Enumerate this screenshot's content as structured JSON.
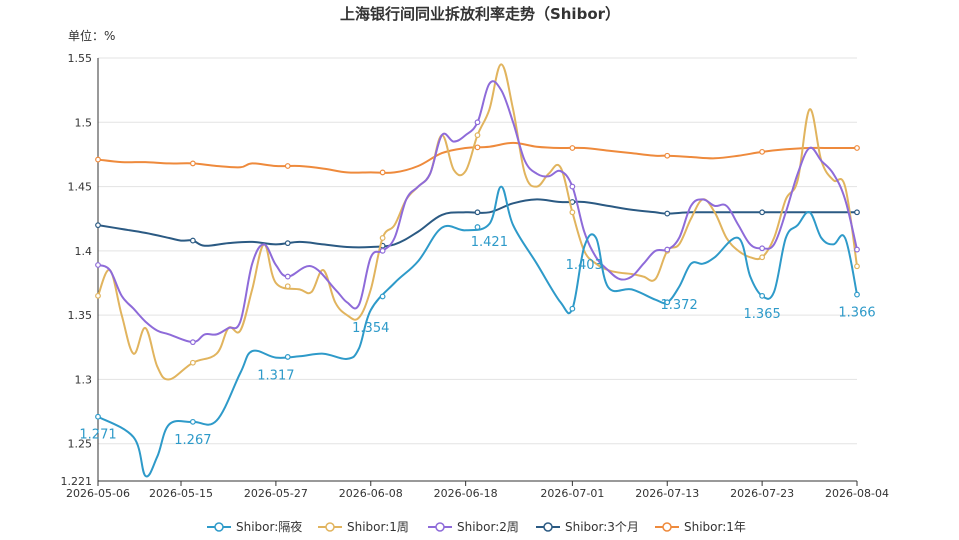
{
  "chart_data": {
    "type": "line",
    "title": "上海银行间同业拆放利率走势（Shibor）",
    "unit_label": "单位：%",
    "ylim": [
      1.221,
      1.55
    ],
    "y_ticks": [
      "1.221",
      "1.25",
      "1.3",
      "1.35",
      "1.4",
      "1.45",
      "1.5",
      "1.55"
    ],
    "y_tick_values": [
      1.221,
      1.25,
      1.3,
      1.35,
      1.4,
      1.45,
      1.5,
      1.55
    ],
    "x_tick_labels": [
      "2026-05-06",
      "2026-05-15",
      "2026-05-27",
      "2026-06-08",
      "2026-06-18",
      "2026-07-01",
      "2026-07-13",
      "2026-07-23",
      "2026-08-04"
    ],
    "x_tick_index": [
      0,
      7,
      15,
      23,
      31,
      40,
      48,
      56,
      64
    ],
    "grid": true,
    "legend_position": "bottom",
    "series": [
      {
        "name": "Shibor:隔夜",
        "color": "#2e9ac9",
        "points": [
          [
            0,
            1.271
          ],
          [
            3,
            1.255
          ],
          [
            4,
            1.225
          ],
          [
            5,
            1.24
          ],
          [
            6,
            1.265
          ],
          [
            8,
            1.267
          ],
          [
            10,
            1.268
          ],
          [
            12,
            1.305
          ],
          [
            13,
            1.322
          ],
          [
            15,
            1.317
          ],
          [
            17,
            1.318
          ],
          [
            19,
            1.32
          ],
          [
            21,
            1.316
          ],
          [
            22,
            1.324
          ],
          [
            23,
            1.354
          ],
          [
            25,
            1.375
          ],
          [
            27,
            1.392
          ],
          [
            29,
            1.418
          ],
          [
            31,
            1.416
          ],
          [
            33,
            1.421
          ],
          [
            34,
            1.45
          ],
          [
            35,
            1.42
          ],
          [
            37,
            1.39
          ],
          [
            39,
            1.36
          ],
          [
            40,
            1.355
          ],
          [
            41,
            1.403
          ],
          [
            42,
            1.41
          ],
          [
            43,
            1.372
          ],
          [
            45,
            1.37
          ],
          [
            47,
            1.362
          ],
          [
            48,
            1.36
          ],
          [
            49,
            1.372
          ],
          [
            50,
            1.39
          ],
          [
            51,
            1.39
          ],
          [
            52,
            1.395
          ],
          [
            54,
            1.41
          ],
          [
            55,
            1.38
          ],
          [
            56,
            1.365
          ],
          [
            57,
            1.368
          ],
          [
            58,
            1.41
          ],
          [
            59,
            1.42
          ],
          [
            60,
            1.43
          ],
          [
            61,
            1.41
          ],
          [
            62,
            1.405
          ],
          [
            63,
            1.41
          ],
          [
            64,
            1.366
          ]
        ]
      },
      {
        "name": "Shibor:1周",
        "color": "#e1b45e",
        "points": [
          [
            0,
            1.365
          ],
          [
            1,
            1.385
          ],
          [
            2,
            1.35
          ],
          [
            3,
            1.32
          ],
          [
            4,
            1.34
          ],
          [
            5,
            1.31
          ],
          [
            6,
            1.3
          ],
          [
            8,
            1.313
          ],
          [
            10,
            1.32
          ],
          [
            11,
            1.34
          ],
          [
            12,
            1.338
          ],
          [
            13,
            1.37
          ],
          [
            14,
            1.405
          ],
          [
            15,
            1.375
          ],
          [
            17,
            1.37
          ],
          [
            18,
            1.368
          ],
          [
            19,
            1.385
          ],
          [
            20,
            1.36
          ],
          [
            21,
            1.35
          ],
          [
            22,
            1.348
          ],
          [
            23,
            1.37
          ],
          [
            24,
            1.41
          ],
          [
            25,
            1.42
          ],
          [
            26,
            1.44
          ],
          [
            27,
            1.45
          ],
          [
            28,
            1.46
          ],
          [
            29,
            1.49
          ],
          [
            30,
            1.463
          ],
          [
            31,
            1.462
          ],
          [
            32,
            1.49
          ],
          [
            33,
            1.51
          ],
          [
            34,
            1.545
          ],
          [
            35,
            1.51
          ],
          [
            36,
            1.46
          ],
          [
            37,
            1.45
          ],
          [
            38,
            1.46
          ],
          [
            39,
            1.465
          ],
          [
            40,
            1.43
          ],
          [
            41,
            1.4
          ],
          [
            42,
            1.39
          ],
          [
            43,
            1.385
          ],
          [
            44,
            1.383
          ],
          [
            45,
            1.382
          ],
          [
            46,
            1.38
          ],
          [
            47,
            1.378
          ],
          [
            48,
            1.4
          ],
          [
            49,
            1.405
          ],
          [
            50,
            1.425
          ],
          [
            51,
            1.44
          ],
          [
            52,
            1.43
          ],
          [
            53,
            1.41
          ],
          [
            54,
            1.4
          ],
          [
            55,
            1.395
          ],
          [
            56,
            1.395
          ],
          [
            57,
            1.41
          ],
          [
            58,
            1.44
          ],
          [
            59,
            1.455
          ],
          [
            60,
            1.51
          ],
          [
            61,
            1.47
          ],
          [
            62,
            1.455
          ],
          [
            63,
            1.45
          ],
          [
            64,
            1.388
          ]
        ]
      },
      {
        "name": "Shibor:2周",
        "color": "#8e6bd9",
        "points": [
          [
            0,
            1.389
          ],
          [
            1,
            1.385
          ],
          [
            2,
            1.365
          ],
          [
            3,
            1.355
          ],
          [
            4,
            1.345
          ],
          [
            5,
            1.338
          ],
          [
            6,
            1.335
          ],
          [
            8,
            1.329
          ],
          [
            9,
            1.335
          ],
          [
            10,
            1.335
          ],
          [
            11,
            1.34
          ],
          [
            12,
            1.345
          ],
          [
            13,
            1.39
          ],
          [
            14,
            1.405
          ],
          [
            15,
            1.389
          ],
          [
            16,
            1.38
          ],
          [
            18,
            1.388
          ],
          [
            20,
            1.37
          ],
          [
            21,
            1.36
          ],
          [
            22,
            1.358
          ],
          [
            23,
            1.395
          ],
          [
            24,
            1.4
          ],
          [
            25,
            1.41
          ],
          [
            26,
            1.44
          ],
          [
            27,
            1.45
          ],
          [
            28,
            1.46
          ],
          [
            29,
            1.49
          ],
          [
            30,
            1.485
          ],
          [
            31,
            1.49
          ],
          [
            32,
            1.5
          ],
          [
            33,
            1.53
          ],
          [
            34,
            1.525
          ],
          [
            35,
            1.5
          ],
          [
            36,
            1.47
          ],
          [
            37,
            1.46
          ],
          [
            38,
            1.458
          ],
          [
            39,
            1.462
          ],
          [
            40,
            1.45
          ],
          [
            41,
            1.415
          ],
          [
            42,
            1.395
          ],
          [
            43,
            1.385
          ],
          [
            44,
            1.378
          ],
          [
            45,
            1.38
          ],
          [
            46,
            1.39
          ],
          [
            47,
            1.4
          ],
          [
            48,
            1.401
          ],
          [
            49,
            1.41
          ],
          [
            50,
            1.435
          ],
          [
            51,
            1.44
          ],
          [
            52,
            1.435
          ],
          [
            53,
            1.435
          ],
          [
            54,
            1.42
          ],
          [
            55,
            1.405
          ],
          [
            56,
            1.402
          ],
          [
            57,
            1.405
          ],
          [
            58,
            1.43
          ],
          [
            59,
            1.46
          ],
          [
            60,
            1.48
          ],
          [
            61,
            1.47
          ],
          [
            62,
            1.46
          ],
          [
            63,
            1.44
          ],
          [
            64,
            1.401
          ]
        ]
      },
      {
        "name": "Shibor:3个月",
        "color": "#2b5a83",
        "points": [
          [
            0,
            1.42
          ],
          [
            2,
            1.417
          ],
          [
            4,
            1.414
          ],
          [
            6,
            1.41
          ],
          [
            7,
            1.408
          ],
          [
            8,
            1.408
          ],
          [
            9,
            1.404
          ],
          [
            11,
            1.406
          ],
          [
            13,
            1.407
          ],
          [
            15,
            1.405
          ],
          [
            17,
            1.407
          ],
          [
            19,
            1.405
          ],
          [
            21,
            1.403
          ],
          [
            23,
            1.403
          ],
          [
            25,
            1.405
          ],
          [
            27,
            1.415
          ],
          [
            29,
            1.428
          ],
          [
            31,
            1.43
          ],
          [
            33,
            1.43
          ],
          [
            35,
            1.437
          ],
          [
            37,
            1.44
          ],
          [
            39,
            1.438
          ],
          [
            41,
            1.438
          ],
          [
            43,
            1.435
          ],
          [
            45,
            1.432
          ],
          [
            47,
            1.43
          ],
          [
            48,
            1.429
          ],
          [
            50,
            1.43
          ],
          [
            52,
            1.43
          ],
          [
            54,
            1.43
          ],
          [
            56,
            1.43
          ],
          [
            58,
            1.43
          ],
          [
            60,
            1.43
          ],
          [
            62,
            1.43
          ],
          [
            64,
            1.43
          ]
        ]
      },
      {
        "name": "Shibor:1年",
        "color": "#ee8a3c",
        "points": [
          [
            0,
            1.471
          ],
          [
            2,
            1.469
          ],
          [
            4,
            1.469
          ],
          [
            6,
            1.468
          ],
          [
            8,
            1.468
          ],
          [
            10,
            1.466
          ],
          [
            12,
            1.465
          ],
          [
            13,
            1.468
          ],
          [
            15,
            1.466
          ],
          [
            17,
            1.466
          ],
          [
            19,
            1.464
          ],
          [
            21,
            1.461
          ],
          [
            23,
            1.461
          ],
          [
            25,
            1.461
          ],
          [
            27,
            1.466
          ],
          [
            29,
            1.476
          ],
          [
            31,
            1.48
          ],
          [
            33,
            1.481
          ],
          [
            35,
            1.484
          ],
          [
            37,
            1.481
          ],
          [
            39,
            1.48
          ],
          [
            41,
            1.48
          ],
          [
            43,
            1.478
          ],
          [
            45,
            1.476
          ],
          [
            47,
            1.474
          ],
          [
            48,
            1.474
          ],
          [
            50,
            1.473
          ],
          [
            52,
            1.472
          ],
          [
            54,
            1.474
          ],
          [
            56,
            1.477
          ],
          [
            58,
            1.479
          ],
          [
            60,
            1.48
          ],
          [
            62,
            1.48
          ],
          [
            64,
            1.48
          ]
        ]
      }
    ],
    "data_labels": [
      {
        "series": 0,
        "index": 0,
        "text": "1.271"
      },
      {
        "series": 0,
        "index": 8,
        "text": "1.267"
      },
      {
        "series": 0,
        "index": 15,
        "text": "1.317"
      },
      {
        "series": 0,
        "index": 23,
        "text": "1.354"
      },
      {
        "series": 0,
        "index": 33,
        "text": "1.421"
      },
      {
        "series": 0,
        "index": 41,
        "text": "1.403"
      },
      {
        "series": 0,
        "index": 49,
        "text": "1.372"
      },
      {
        "series": 0,
        "index": 56,
        "text": "1.365"
      },
      {
        "series": 0,
        "index": 64,
        "text": "1.366"
      }
    ],
    "marker_indices": [
      0,
      8,
      16,
      24,
      32,
      40,
      48,
      56,
      64
    ]
  }
}
